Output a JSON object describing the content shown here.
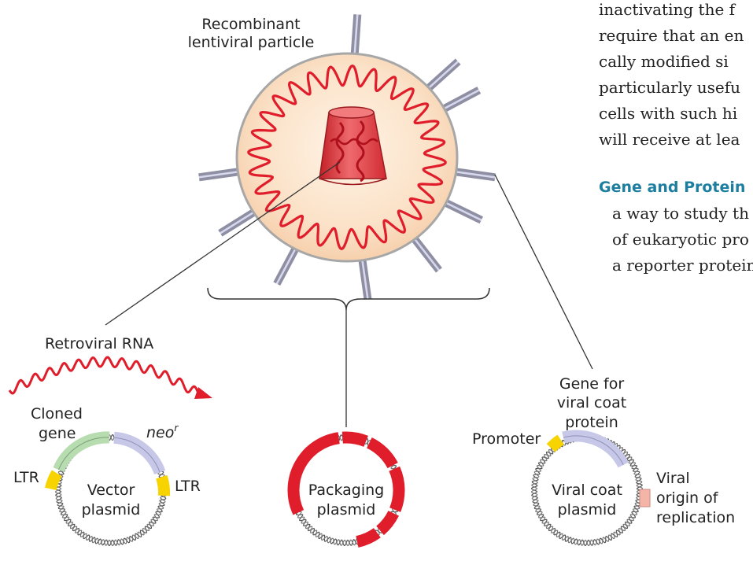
{
  "labels": {
    "particle_line1": "Recombinant",
    "particle_line2": "lentiviral particle",
    "retroviral_rna": "Retroviral RNA",
    "cloned_gene_line1": "Cloned",
    "cloned_gene_line2": "gene",
    "neo_base": "neo",
    "neo_sup": "r",
    "ltr_left": "LTR",
    "ltr_right": "LTR",
    "vector_line1": "Vector",
    "vector_line2": "plasmid",
    "packaging_line1": "Packaging",
    "packaging_line2": "plasmid",
    "gene_coat_line1": "Gene for",
    "gene_coat_line2": "viral coat",
    "gene_coat_line3": "protein",
    "promoter": "Promoter",
    "coat_line1": "Viral coat",
    "coat_line2": "plasmid",
    "origin_line1": "Viral",
    "origin_line2": "origin of",
    "origin_line3": "replication"
  },
  "book_text": {
    "lines": [
      "inactivating the f",
      "require that an en",
      "cally modified si",
      "particularly usefu",
      "cells with such hi",
      "will receive at lea"
    ],
    "heading": "Gene and Protein",
    "lines2": [
      "a way to study th",
      "of eukaryotic pro",
      "a reporter protein"
    ]
  },
  "colors": {
    "rna_red": "#e01e2b",
    "particle_fill": "#fbe2c8",
    "particle_edge": "#a7a7a7",
    "capsid": "#e8494e",
    "spike": "#c9cbe6",
    "ltr_yellow": "#f7d400",
    "cloned_gene_green": "#b6dcb0",
    "neo_lavender": "#c7c8e8",
    "origin_pink": "#f4b4a8",
    "heading_teal": "#1d7ea0"
  }
}
